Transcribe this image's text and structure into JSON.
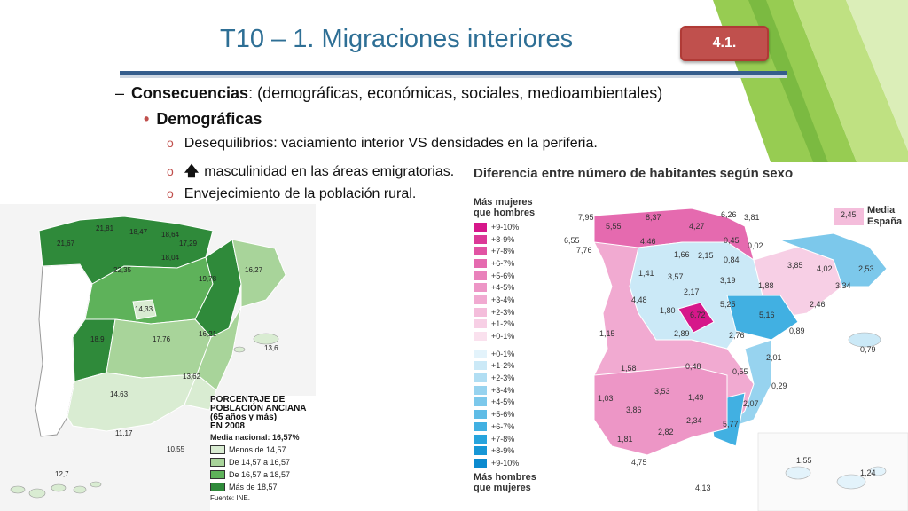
{
  "slide": {
    "title": "T10 – 1. Migraciones interiores",
    "badge": "4.1.",
    "bullet_l1_bold": "Consecuencias",
    "bullet_l1_rest": ": (demográficas, económicas, sociales, medioambientales)",
    "bullet_l2": "Demográficas",
    "bullet_l3": [
      "Desequilibrios: vaciamiento interior VS densidades en la periferia.",
      "masculinidad en las áreas emigratorias.",
      "Envejecimiento de la población rural."
    ],
    "arrow_glyph": "🡅"
  },
  "map_left": {
    "legend_title": "PORCENTAJE DE POBLACIÓN ANCIANA (65 años y más) EN 2008",
    "legend_title_lines": [
      "PORCENTAJE DE",
      "POBLACIÓN ANCIANA",
      "(65 años y más)",
      "EN 2008"
    ],
    "average": "Media nacional: 16,57%",
    "classes": [
      {
        "label": "Menos de 14,57",
        "color": "#d9ecd2"
      },
      {
        "label": "De 14,57 a 16,57",
        "color": "#a8d49a"
      },
      {
        "label": "De 16,57 a 18,57",
        "color": "#5eb25a"
      },
      {
        "label": "Más de 18,57",
        "color": "#2f8a3a"
      }
    ],
    "source": "Fuente: INE.",
    "values": [
      "21,81",
      "18,47",
      "18,64",
      "21,67",
      "17,29",
      "18,04",
      "22,35",
      "19,78",
      "16,27",
      "14,33",
      "17,76",
      "16,21",
      "18,9",
      "13,6",
      "13,62",
      "14,63",
      "11,17",
      "10,55",
      "12,7"
    ]
  },
  "map_right": {
    "title": "Diferencia entre número de habitantes según sexo",
    "legend_top_heading": [
      "Más mujeres",
      "que hombres"
    ],
    "legend_bottom_heading": [
      "Más hombres",
      "que mujeres"
    ],
    "women_classes": [
      {
        "label": "+9-10%",
        "color": "#d6178a"
      },
      {
        "label": "+8-9%",
        "color": "#dc3997"
      },
      {
        "label": "+7-8%",
        "color": "#e153a3"
      },
      {
        "label": "+6-7%",
        "color": "#e56aaf"
      },
      {
        "label": "+5-6%",
        "color": "#e981bb"
      },
      {
        "label": "+4-5%",
        "color": "#ed96c6"
      },
      {
        "label": "+3-4%",
        "color": "#f1aad1"
      },
      {
        "label": "+2-3%",
        "color": "#f4bddb"
      },
      {
        "label": "+1-2%",
        "color": "#f7cfe5"
      },
      {
        "label": "+0-1%",
        "color": "#fae1ee"
      }
    ],
    "men_classes": [
      {
        "label": "+0-1%",
        "color": "#e3f3fb"
      },
      {
        "label": "+1-2%",
        "color": "#cbe9f7"
      },
      {
        "label": "+2-3%",
        "color": "#b1def3"
      },
      {
        "label": "+3-4%",
        "color": "#97d3ef"
      },
      {
        "label": "+4-5%",
        "color": "#7cc8eb"
      },
      {
        "label": "+5-6%",
        "color": "#5fbce6"
      },
      {
        "label": "+6-7%",
        "color": "#41b0e2"
      },
      {
        "label": "+7-8%",
        "color": "#27a4dd"
      },
      {
        "label": "+8-9%",
        "color": "#1797d6"
      },
      {
        "label": "+9-10%",
        "color": "#0b8acf"
      }
    ],
    "media_label": [
      "Media",
      "España"
    ],
    "media_value": "2,45",
    "values": [
      "7,95",
      "8,37",
      "6,26",
      "3,81",
      "5,55",
      "4,27",
      "6,55",
      "4,46",
      "0,45",
      "0,02",
      "7,76",
      "1,66",
      "2,15",
      "0,84",
      "3,85",
      "4,02",
      "2,53",
      "1,41",
      "3,57",
      "3,19",
      "1,88",
      "3,34",
      "4,48",
      "2,17",
      "1,80",
      "6,72",
      "5,25",
      "5,16",
      "2,46",
      "1,15",
      "2,89",
      "2,76",
      "0,89",
      "0,79",
      "1,58",
      "0,48",
      "0,55",
      "2,01",
      "3,53",
      "0,29",
      "1,03",
      "3,86",
      "1,49",
      "2,07",
      "2,34",
      "5,77",
      "1,81",
      "2,82",
      "4,75",
      "1,55",
      "4,13",
      "1,24"
    ]
  }
}
